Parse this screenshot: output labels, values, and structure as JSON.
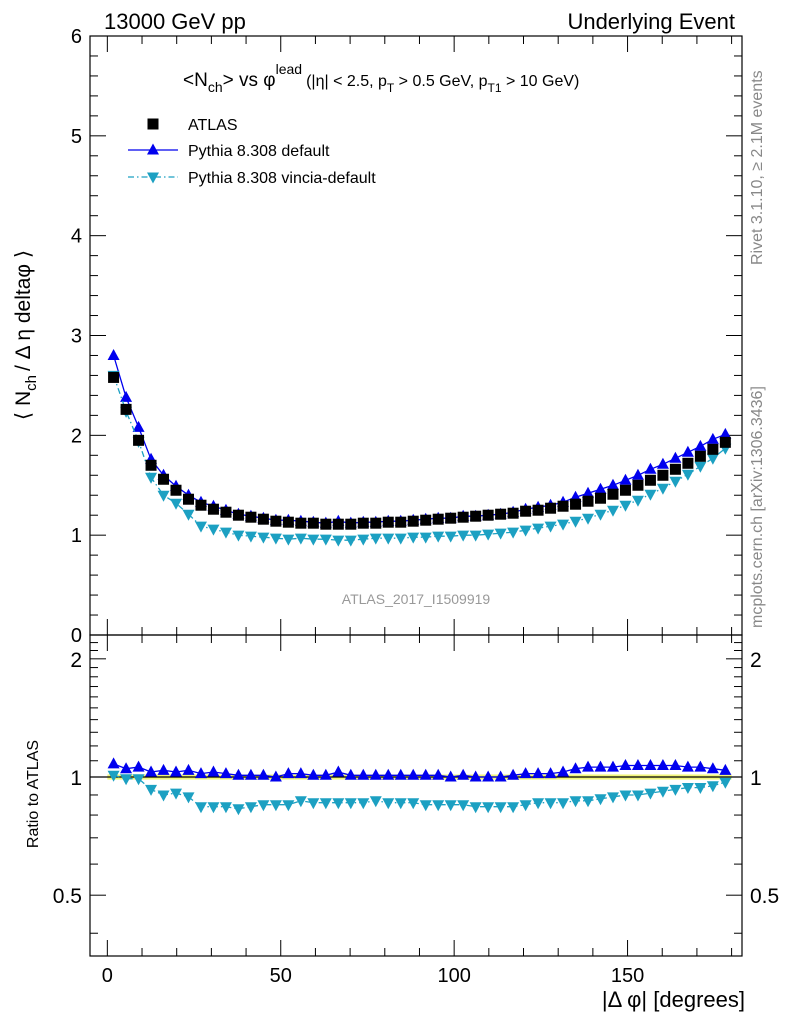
{
  "header": {
    "left": "13000 GeV pp",
    "right": "Underlying Event"
  },
  "side_labels": {
    "rivet": "Rivet 3.1.10, ≥ 2.1M events",
    "mcplots": "mcplots.cern.ch [arXiv:1306.3436]"
  },
  "watermark": "ATLAS_2017_I1509919",
  "chart_data": [
    {
      "type": "scatter",
      "panel": "main",
      "title": "<Nch> vs φlead (|η| < 2.5, pT > 0.5 GeV, pT1 > 10 GeV)",
      "title_parts": {
        "t1": "<N",
        "t2": "ch",
        "t3": "> vs φ",
        "t4": "lead",
        "t5": "(|η| < 2.5, p",
        "t6": "T",
        "t7": " > 0.5 GeV, p",
        "t8": "T1",
        "t9": " > 10 GeV)"
      },
      "ylabel": "⟨ Nch / Δ η deltaφ ⟩",
      "ylabel_parts": {
        "a": "⟨ N",
        "b": "ch",
        "c": "/ Δ η deltaφ ⟩"
      },
      "xlim": [
        -5,
        183
      ],
      "ylim": [
        0,
        6
      ],
      "yticks": [
        "0",
        "1",
        "2",
        "3",
        "4",
        "5",
        "6"
      ],
      "legend_position": "top-left",
      "x": [
        1.8,
        5.4,
        9,
        12.6,
        16.2,
        19.8,
        23.4,
        27,
        30.6,
        34.2,
        37.8,
        41.4,
        45,
        48.6,
        52.2,
        55.8,
        59.4,
        63,
        66.6,
        70.2,
        73.8,
        77.4,
        81,
        84.6,
        88.2,
        91.8,
        95.4,
        99,
        102.6,
        106.2,
        109.8,
        113.4,
        117,
        120.6,
        124.2,
        127.8,
        131.4,
        135,
        138.6,
        142.2,
        145.8,
        149.4,
        153,
        156.6,
        160.2,
        163.8,
        167.4,
        171,
        174.6,
        178.2
      ],
      "series": [
        {
          "name": "ATLAS",
          "marker": "square",
          "color": "#000000",
          "values": [
            2.58,
            2.26,
            1.95,
            1.7,
            1.56,
            1.45,
            1.36,
            1.3,
            1.26,
            1.23,
            1.2,
            1.18,
            1.16,
            1.14,
            1.13,
            1.12,
            1.12,
            1.11,
            1.11,
            1.11,
            1.12,
            1.12,
            1.13,
            1.13,
            1.14,
            1.15,
            1.16,
            1.17,
            1.18,
            1.19,
            1.2,
            1.21,
            1.22,
            1.24,
            1.25,
            1.27,
            1.29,
            1.31,
            1.34,
            1.37,
            1.41,
            1.45,
            1.5,
            1.55,
            1.6,
            1.66,
            1.72,
            1.79,
            1.86,
            1.93
          ]
        },
        {
          "name": "Pythia 8.308 default",
          "marker": "triangle-up",
          "line": "solid",
          "color": "#0000ee",
          "values": [
            2.8,
            2.38,
            2.08,
            1.76,
            1.6,
            1.49,
            1.4,
            1.33,
            1.29,
            1.25,
            1.21,
            1.19,
            1.17,
            1.15,
            1.15,
            1.14,
            1.13,
            1.12,
            1.14,
            1.12,
            1.13,
            1.13,
            1.14,
            1.14,
            1.15,
            1.16,
            1.17,
            1.17,
            1.19,
            1.19,
            1.2,
            1.21,
            1.23,
            1.26,
            1.28,
            1.3,
            1.33,
            1.38,
            1.42,
            1.46,
            1.5,
            1.55,
            1.6,
            1.66,
            1.71,
            1.77,
            1.83,
            1.89,
            1.96,
            2.01
          ]
        },
        {
          "name": "Pythia 8.308 vincia-default",
          "marker": "triangle-down",
          "line": "dash-dot",
          "color": "#1ca0c2",
          "values": [
            2.6,
            2.24,
            1.94,
            1.58,
            1.4,
            1.32,
            1.21,
            1.09,
            1.06,
            1.03,
            1.0,
            0.99,
            0.98,
            0.97,
            0.96,
            0.97,
            0.96,
            0.96,
            0.95,
            0.95,
            0.96,
            0.97,
            0.97,
            0.97,
            0.98,
            0.98,
            0.99,
            0.99,
            1.0,
            1.0,
            1.01,
            1.02,
            1.03,
            1.05,
            1.07,
            1.09,
            1.11,
            1.14,
            1.17,
            1.21,
            1.25,
            1.3,
            1.35,
            1.41,
            1.47,
            1.54,
            1.61,
            1.69,
            1.77,
            1.87
          ]
        }
      ]
    },
    {
      "type": "scatter",
      "panel": "ratio",
      "ylabel": "Ratio to ATLAS",
      "xlabel": "|Δ φ| [degrees]",
      "xlim": [
        -5,
        183
      ],
      "ylim": [
        0.35,
        2.3
      ],
      "xticks": [
        "0",
        "50",
        "100",
        "150"
      ],
      "yticks": [
        "0.5",
        "1",
        "2"
      ],
      "reference_line": 1,
      "series": [
        {
          "name": "Pythia 8.308 default",
          "values": [
            1.08,
            1.05,
            1.06,
            1.03,
            1.04,
            1.03,
            1.04,
            1.02,
            1.03,
            1.02,
            1.01,
            1.01,
            1.01,
            1.0,
            1.02,
            1.02,
            1.01,
            1.01,
            1.03,
            1.01,
            1.01,
            1.01,
            1.01,
            1.01,
            1.01,
            1.01,
            1.01,
            1.0,
            1.01,
            1.0,
            1.0,
            1.0,
            1.01,
            1.02,
            1.02,
            1.02,
            1.03,
            1.05,
            1.06,
            1.06,
            1.06,
            1.07,
            1.07,
            1.07,
            1.07,
            1.07,
            1.06,
            1.06,
            1.05,
            1.04
          ]
        },
        {
          "name": "Pythia 8.308 vincia-default",
          "values": [
            1.01,
            0.99,
            0.99,
            0.93,
            0.9,
            0.91,
            0.89,
            0.84,
            0.84,
            0.84,
            0.83,
            0.84,
            0.85,
            0.85,
            0.85,
            0.87,
            0.86,
            0.86,
            0.86,
            0.86,
            0.86,
            0.87,
            0.86,
            0.86,
            0.86,
            0.85,
            0.85,
            0.85,
            0.85,
            0.84,
            0.84,
            0.84,
            0.84,
            0.85,
            0.86,
            0.86,
            0.86,
            0.87,
            0.87,
            0.88,
            0.89,
            0.9,
            0.9,
            0.91,
            0.92,
            0.93,
            0.94,
            0.94,
            0.95,
            0.97
          ]
        }
      ]
    }
  ]
}
